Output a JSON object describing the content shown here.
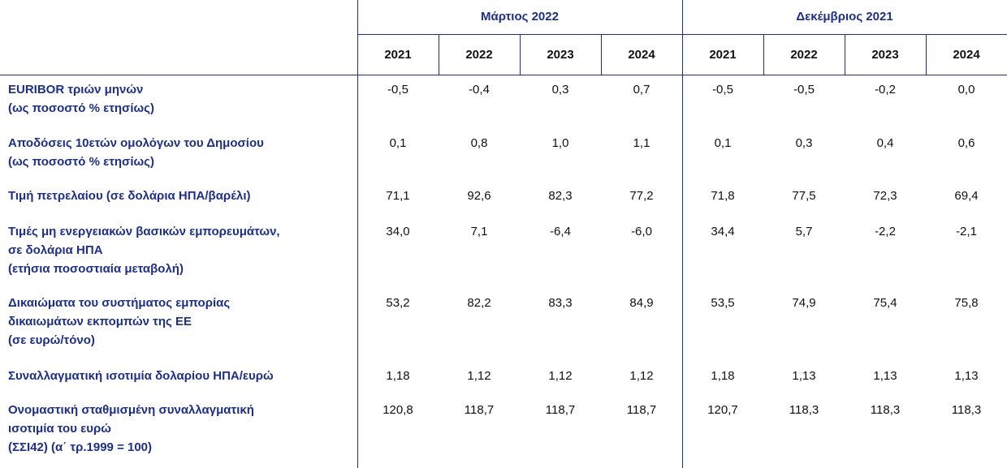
{
  "header": {
    "groups": [
      {
        "title": "Μάρτιος 2022",
        "years": [
          "2021",
          "2022",
          "2023",
          "2024"
        ]
      },
      {
        "title": "Δεκέμβριος 2021",
        "years": [
          "2021",
          "2022",
          "2023",
          "2024"
        ]
      }
    ]
  },
  "rows": [
    {
      "label": [
        "EURIBOR τριών μηνών",
        "(ως ποσοστό % ετησίως)"
      ],
      "values": [
        "-0,5",
        "-0,4",
        "0,3",
        "0,7",
        "-0,5",
        "-0,5",
        "-0,2",
        "0,0"
      ]
    },
    {
      "label": [
        "Αποδόσεις 10ετών ομολόγων του Δημοσίου",
        "(ως ποσοστό % ετησίως)"
      ],
      "values": [
        "0,1",
        "0,8",
        "1,0",
        "1,1",
        "0,1",
        "0,3",
        "0,4",
        "0,6"
      ]
    },
    {
      "label": [
        "Τιμή πετρελαίου (σε δολάρια ΗΠΑ/βαρέλι)"
      ],
      "values": [
        "71,1",
        "92,6",
        "82,3",
        "77,2",
        "71,8",
        "77,5",
        "72,3",
        "69,4"
      ]
    },
    {
      "label": [
        "Τιμές μη ενεργειακών βασικών εμπορευμάτων,",
        "σε δολάρια ΗΠΑ",
        "(ετήσια ποσοστιαία μεταβολή)"
      ],
      "values": [
        "34,0",
        "7,1",
        "-6,4",
        "-6,0",
        "34,4",
        "5,7",
        "-2,2",
        "-2,1"
      ]
    },
    {
      "label": [
        "Δικαιώματα του συστήματος εμπορίας",
        "δικαιωμάτων εκπομπών της ΕΕ",
        "(σε ευρώ/τόνο)"
      ],
      "values": [
        "53,2",
        "82,2",
        "83,3",
        "84,9",
        "53,5",
        "74,9",
        "75,4",
        "75,8"
      ]
    },
    {
      "label": [
        "Συναλλαγματική ισοτιμία δολαρίου ΗΠΑ/ευρώ"
      ],
      "values": [
        "1,18",
        "1,12",
        "1,12",
        "1,12",
        "1,18",
        "1,13",
        "1,13",
        "1,13"
      ]
    },
    {
      "label": [
        "Ονομαστική σταθμισμένη συναλλαγματική",
        "ισοτιμία του ευρώ",
        "(ΣΣΙ42) (α΄ τρ.1999 = 100)"
      ],
      "values": [
        "120,8",
        "118,7",
        "118,7",
        "118,7",
        "120,7",
        "118,3",
        "118,3",
        "118,3"
      ]
    }
  ]
}
